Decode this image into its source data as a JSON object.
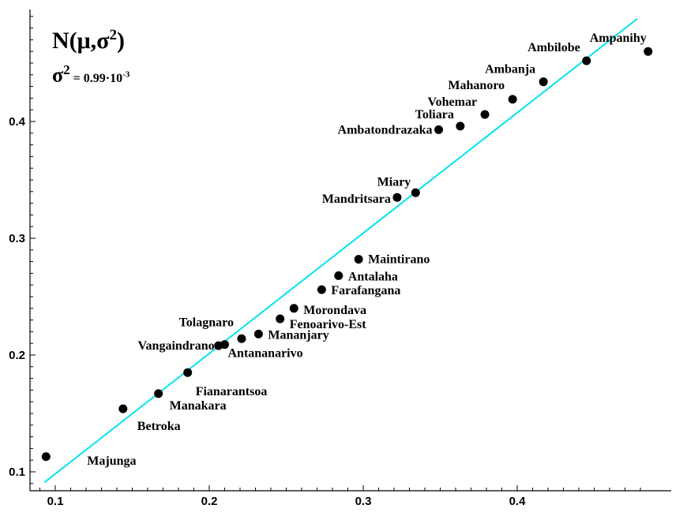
{
  "formula": {
    "dist_prefix": "N(",
    "mu": "μ",
    "comma": ",",
    "sigma": "σ",
    "sq": "2",
    "close": ")",
    "var_sigma": "σ",
    "var_sq": "2",
    "var_value": " = 0.99·10",
    "var_exp": "-3"
  },
  "chart_data": {
    "type": "scatter",
    "xlim": [
      0.08,
      0.48
    ],
    "ylim": [
      0.08,
      0.49
    ],
    "xticks": [
      0.1,
      0.2,
      0.3,
      0.4
    ],
    "yticks": [
      0.1,
      0.2,
      0.3,
      0.4
    ],
    "xtick_labels": [
      "0.1",
      "0.2",
      "0.3",
      "0.4"
    ],
    "ytick_labels": [
      "0.1",
      "0.2",
      "0.3",
      "0.4"
    ],
    "grid": false,
    "fit_line": {
      "color": "#00e5ee",
      "x": [
        0.093,
        0.478
      ],
      "y": [
        0.091,
        0.488
      ]
    },
    "marker_color": "#000000",
    "points": [
      {
        "label": "Majunga",
        "x": 0.094,
        "y": 0.113
      },
      {
        "label": "Betroka",
        "x": 0.144,
        "y": 0.154
      },
      {
        "label": "Manakara",
        "x": 0.167,
        "y": 0.167
      },
      {
        "label": "Fianarantsoa",
        "x": 0.186,
        "y": 0.185
      },
      {
        "label": "Vangaindrano",
        "x": 0.206,
        "y": 0.208
      },
      {
        "label": "Antananarivo",
        "x": 0.21,
        "y": 0.209
      },
      {
        "label": "Tolagnaro",
        "x": 0.221,
        "y": 0.214
      },
      {
        "label": "Mananjary",
        "x": 0.232,
        "y": 0.218
      },
      {
        "label": "Fenoarivo-Est",
        "x": 0.246,
        "y": 0.231
      },
      {
        "label": "Morondava",
        "x": 0.255,
        "y": 0.24
      },
      {
        "label": "Farafangana",
        "x": 0.273,
        "y": 0.256
      },
      {
        "label": "Antalaha",
        "x": 0.284,
        "y": 0.268
      },
      {
        "label": "Maintirano",
        "x": 0.297,
        "y": 0.282
      },
      {
        "label": "Mandritsara",
        "x": 0.322,
        "y": 0.335
      },
      {
        "label": "Miary",
        "x": 0.334,
        "y": 0.339
      },
      {
        "label": "Ambatondrazaka",
        "x": 0.349,
        "y": 0.393
      },
      {
        "label": "Toliara",
        "x": 0.363,
        "y": 0.396
      },
      {
        "label": "Vohemar",
        "x": 0.379,
        "y": 0.406
      },
      {
        "label": "Mahanoro",
        "x": 0.397,
        "y": 0.419
      },
      {
        "label": "Ambanja",
        "x": 0.417,
        "y": 0.434
      },
      {
        "label": "Ambilobe",
        "x": 0.445,
        "y": 0.452
      },
      {
        "label": "Ampanihy",
        "x": 0.485,
        "y": 0.46
      }
    ]
  }
}
